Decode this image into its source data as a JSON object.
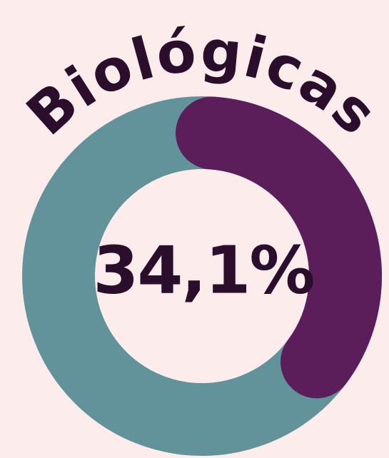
{
  "chart_data": {
    "type": "donut",
    "title": "Biológicas",
    "values": [
      34.1
    ],
    "value_labels": [
      "34,1%"
    ],
    "color": "#5b1e5b",
    "track_color": "#62939a"
  }
}
